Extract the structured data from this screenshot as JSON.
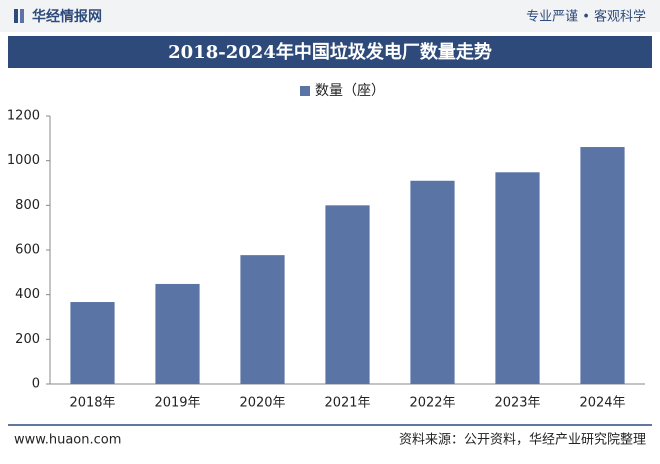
{
  "header": {
    "logo": "华经情报网",
    "slogan": "专业严谨 • 客观科学"
  },
  "footer": {
    "website": "www.huaon.com",
    "source": "资料来源：公开资料，华经产业研究院整理"
  },
  "chart_data": {
    "type": "bar",
    "title": "2018-2024年中国垃圾发电厂数量走势",
    "categories": [
      "2018年",
      "2019年",
      "2020年",
      "2021年",
      "2022年",
      "2023年",
      "2024年"
    ],
    "series": [
      {
        "name": "数量（座）",
        "color": "#5b74a6",
        "values": [
          367,
          448,
          577,
          800,
          910,
          948,
          1061
        ]
      }
    ],
    "ylim": [
      0,
      1200
    ],
    "yticks": [
      0,
      200,
      400,
      600,
      800,
      1000,
      1200
    ],
    "grid": false,
    "legend": "top"
  }
}
